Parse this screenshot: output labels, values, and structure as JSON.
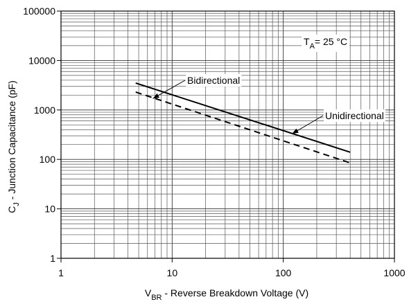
{
  "chart_data": {
    "type": "line",
    "title": "",
    "xlabel": {
      "main": "V",
      "sub": "BR",
      "rest": " - Reverse Breakdown Voltage (V)"
    },
    "ylabel": {
      "main": "C",
      "sub": "J",
      "rest": " - Junction Capacitance (pF)"
    },
    "xscale": "log",
    "yscale": "log",
    "xlim": [
      1,
      1000
    ],
    "ylim": [
      1,
      100000
    ],
    "grid": true,
    "x_ticks": [
      1,
      10,
      100,
      1000
    ],
    "x_tick_labels": [
      "1",
      "10",
      "100",
      "1000"
    ],
    "y_ticks": [
      1,
      10,
      100,
      1000,
      10000,
      100000
    ],
    "y_tick_labels": [
      "1",
      "10",
      "100",
      "1000",
      "10000",
      "100000"
    ],
    "series": [
      {
        "name": "Unidirectional",
        "style": "solid",
        "x": [
          4.7,
          400
        ],
        "y": [
          3500,
          140
        ]
      },
      {
        "name": "Bidirectional",
        "style": "dashed",
        "x": [
          4.7,
          400
        ],
        "y": [
          2300,
          85
        ]
      }
    ],
    "annotations": [
      {
        "text": "Bidirectional",
        "series": "Bidirectional",
        "point": [
          6.7,
          1700
        ]
      },
      {
        "text": "Unidirectional",
        "series": "Unidirectional",
        "point": [
          120,
          330
        ]
      }
    ],
    "condition": {
      "main": "T",
      "sub": "A",
      "rest": "= 25 °C"
    }
  }
}
